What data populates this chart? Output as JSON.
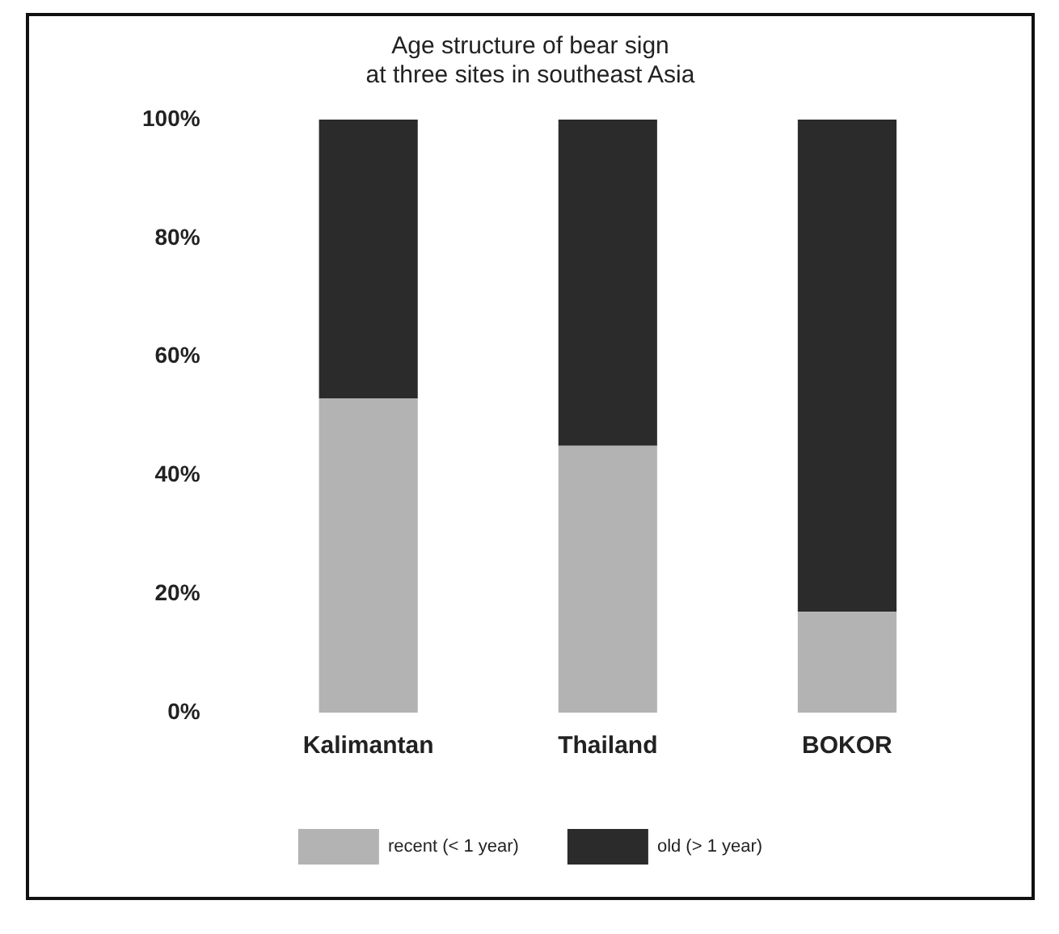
{
  "chart_data": {
    "type": "bar",
    "title": [
      "Age structure of bear sign",
      "at three sites in southeast Asia"
    ],
    "categories": [
      "Kalimantan",
      "Thailand",
      "BOKOR"
    ],
    "stacked": true,
    "series": [
      {
        "name": "recent (< 1 year)",
        "color": "#b3b3b3",
        "values": [
          53,
          45,
          17
        ]
      },
      {
        "name": "old (> 1 year)",
        "color": "#2b2b2b",
        "values": [
          47,
          55,
          83
        ]
      }
    ],
    "ylim": [
      0,
      100
    ],
    "yticks": [
      {
        "value": 0,
        "label": "0%"
      },
      {
        "value": 20,
        "label": "20%"
      },
      {
        "value": 40,
        "label": "40%"
      },
      {
        "value": 60,
        "label": "60%"
      },
      {
        "value": 80,
        "label": "80%"
      },
      {
        "value": 100,
        "label": "100%"
      }
    ],
    "grid": false,
    "legend": "bottom"
  }
}
